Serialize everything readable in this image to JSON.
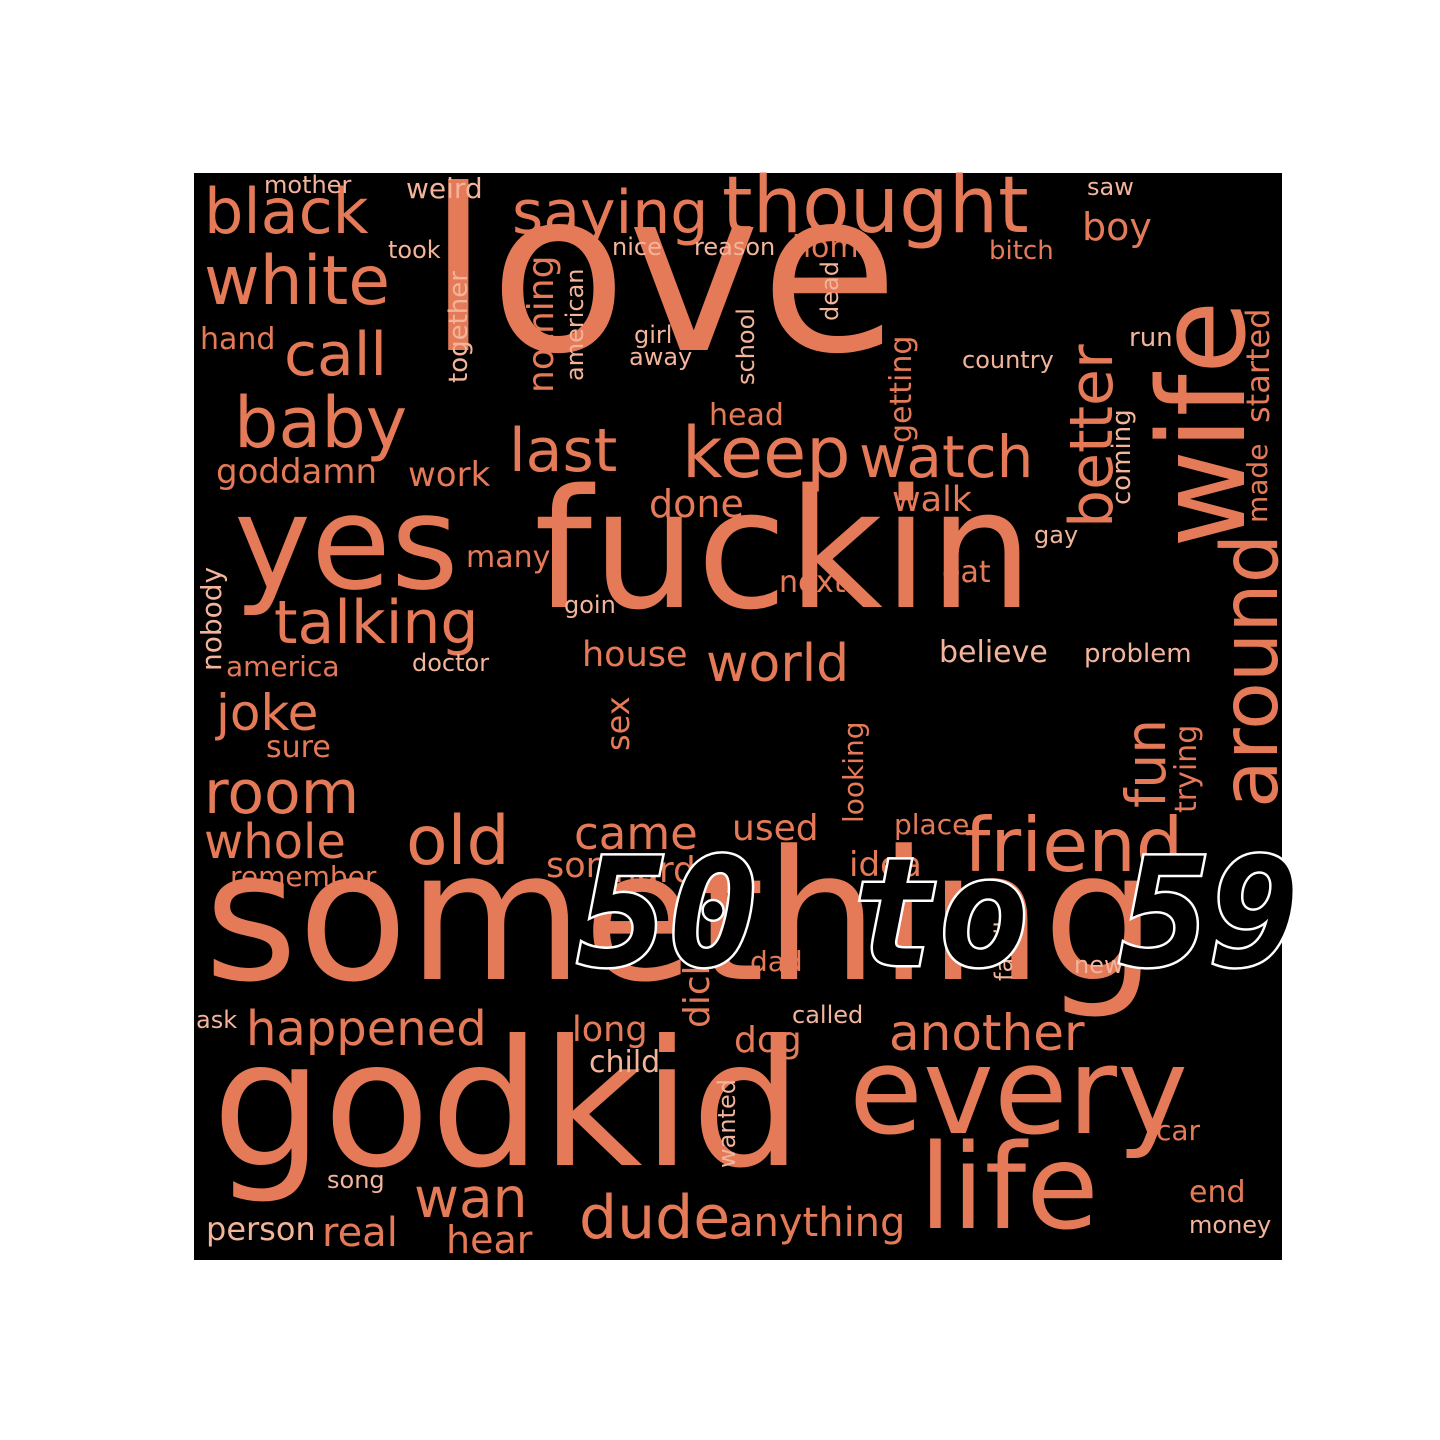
{
  "title": "50 to 59",
  "colors": {
    "background": "#000000",
    "word": "#e47a57",
    "word_light": "#f2b49a",
    "title_outline": "#ffffff"
  },
  "words": {
    "love": "love",
    "something": "something",
    "fuckin": "fuckin",
    "godkid": "godkid",
    "wife": "wife",
    "yes": "yes",
    "every": "every",
    "life": "life",
    "thought": "thought",
    "saying": "saying",
    "black": "black",
    "white": "white",
    "call": "call",
    "baby": "baby",
    "keep": "keep",
    "last": "last",
    "watch": "watch",
    "talking": "talking",
    "world": "world",
    "joke": "joke",
    "room": "room",
    "whole": "whole",
    "old": "old",
    "came": "came",
    "friend": "friend",
    "around": "around",
    "better": "better",
    "happened": "happened",
    "another": "another",
    "wan": "wan",
    "dude": "dude",
    "anything": "anything",
    "real": "real",
    "hear": "hear",
    "person": "person",
    "boy": "boy",
    "weird": "weird",
    "mother": "mother",
    "took": "took",
    "nice": "nice",
    "reason": "reason",
    "home": "home",
    "bitch": "bitch",
    "saw": "saw",
    "hand": "hand",
    "girl": "girl",
    "away": "away",
    "country": "country",
    "run": "run",
    "head": "head",
    "goddamn": "goddamn",
    "work": "work",
    "done": "done",
    "walk": "walk",
    "many": "many",
    "next": "next",
    "eat": "eat",
    "gay": "gay",
    "goin": "goin",
    "house": "house",
    "believe": "believe",
    "problem": "problem",
    "america": "america",
    "doctor": "doctor",
    "sure": "sure",
    "used": "used",
    "place": "place",
    "son": "son",
    "hard": "hard",
    "idea": "idea",
    "remember": "remember",
    "dad": "dad",
    "new": "new",
    "ask": "ask",
    "long": "long",
    "called": "called",
    "dog": "dog",
    "child": "child",
    "car": "car",
    "song": "song",
    "end": "end",
    "money": "money",
    "fun": "fun",
    "together": "together",
    "nothing": "nothing",
    "american": "american",
    "school": "school",
    "dead": "dead",
    "getting": "getting",
    "coming": "coming",
    "made": "made",
    "started": "started",
    "nobody": "nobody",
    "sex": "sex",
    "looking": "looking",
    "trying": "trying",
    "dick": "dick",
    "family": "family",
    "wanted": "wanted"
  }
}
